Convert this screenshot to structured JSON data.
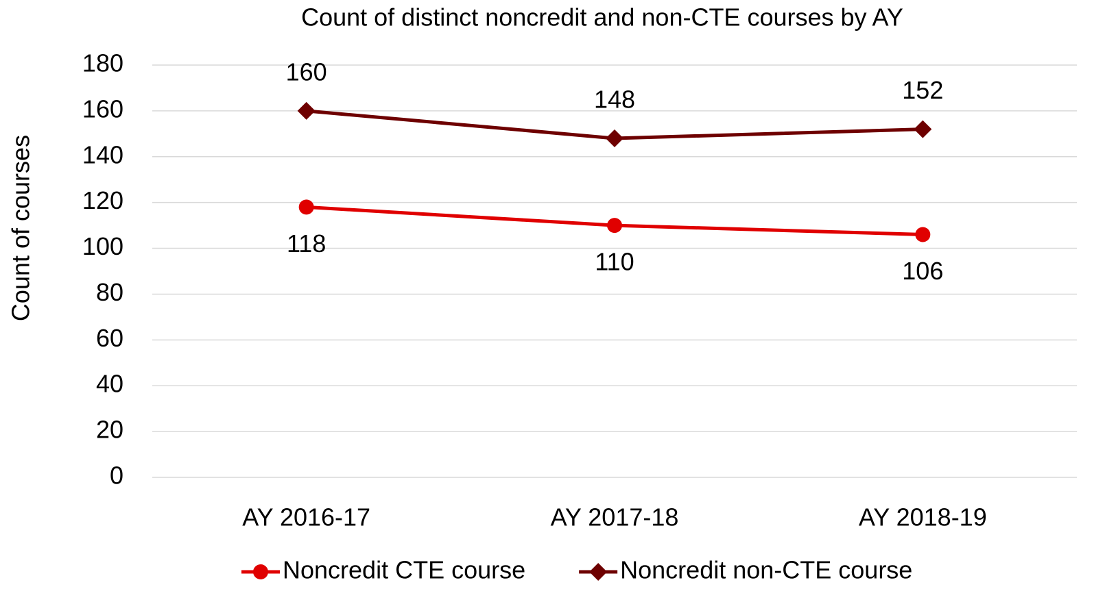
{
  "chart_data": {
    "type": "line",
    "title": "Count of distinct noncredit and non-CTE courses by AY",
    "ylabel": "Count of courses",
    "categories": [
      "AY 2016-17",
      "AY 2017-18",
      "AY 2018-19"
    ],
    "series": [
      {
        "name": "Noncredit CTE course",
        "color": "#e00000",
        "marker": "circle",
        "values": [
          118,
          110,
          106
        ]
      },
      {
        "name": "Noncredit non-CTE course",
        "color": "#6e0000",
        "marker": "diamond",
        "values": [
          160,
          148,
          152
        ]
      }
    ],
    "ylim": [
      0,
      180
    ],
    "yticks": [
      0,
      20,
      40,
      60,
      80,
      100,
      120,
      140,
      160,
      180
    ],
    "grid": true,
    "legend": "bottom"
  }
}
